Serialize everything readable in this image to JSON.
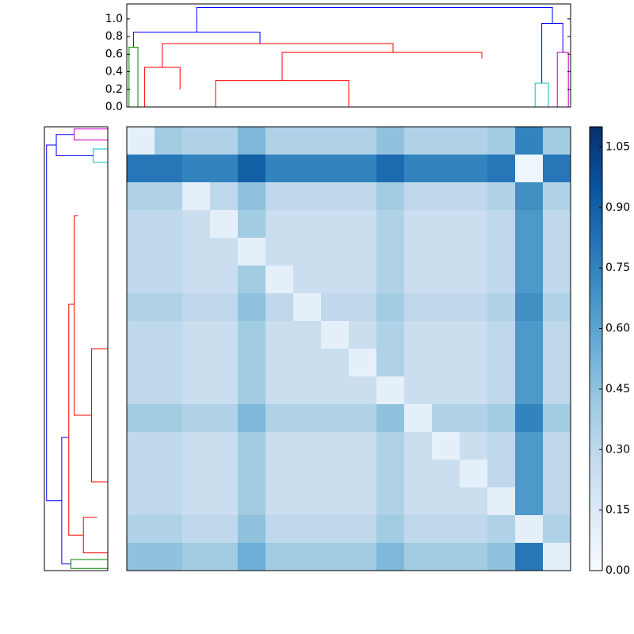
{
  "chart_data": {
    "type": "clustermap",
    "dendrogram": {
      "xlim": [
        0,
        100
      ],
      "ylim": [
        0,
        1.17
      ],
      "yticks": [
        {
          "value": 0,
          "label": "0.0"
        },
        {
          "value": 0.2,
          "label": "0.2"
        },
        {
          "value": 0.4,
          "label": "0.4"
        },
        {
          "value": 0.6,
          "label": "0.6"
        },
        {
          "value": 0.8,
          "label": "0.8"
        },
        {
          "value": 1.0,
          "label": "1.0"
        }
      ],
      "links": [
        {
          "x": [
            0.5,
            0.5,
            2.5,
            2.5
          ],
          "y": [
            0,
            0.68,
            0.68,
            0
          ],
          "color": "#008000"
        },
        {
          "x": [
            4,
            4,
            12,
            12
          ],
          "y": [
            0,
            0.45,
            0.45,
            0.2
          ],
          "color": "#ff0000"
        },
        {
          "x": [
            20,
            20,
            50,
            50
          ],
          "y": [
            0,
            0.3,
            0.3,
            0
          ],
          "color": "#ff0000"
        },
        {
          "x": [
            35,
            35,
            80,
            80
          ],
          "y": [
            0.3,
            0.62,
            0.62,
            0.55
          ],
          "color": "#ff0000"
        },
        {
          "x": [
            8,
            8,
            60,
            60
          ],
          "y": [
            0.45,
            0.72,
            0.72,
            0.62
          ],
          "color": "#ff0000"
        },
        {
          "x": [
            1.5,
            1.5,
            30,
            30
          ],
          "y": [
            0.68,
            0.85,
            0.85,
            0.72
          ],
          "color": "#0000ff"
        },
        {
          "x": [
            92,
            92,
            95,
            95
          ],
          "y": [
            0,
            0.27,
            0.27,
            0
          ],
          "color": "#00bfbf"
        },
        {
          "x": [
            97,
            97,
            99.5,
            99.5
          ],
          "y": [
            0,
            0.62,
            0.62,
            0
          ],
          "color": "#bf00bf"
        },
        {
          "x": [
            93.5,
            93.5,
            98.25,
            98.25
          ],
          "y": [
            0.27,
            0.95,
            0.95,
            0.62
          ],
          "color": "#0000ff"
        },
        {
          "x": [
            15.75,
            15.75,
            95.9,
            95.9
          ],
          "y": [
            0.85,
            1.13,
            1.13,
            0.95
          ],
          "color": "#0000ff"
        }
      ]
    },
    "heatmap": {
      "clim": [
        0,
        1.1
      ],
      "colormap": [
        "#f7fbff",
        "#deebf7",
        "#c6dbef",
        "#9ecae1",
        "#6baed6",
        "#4292c6",
        "#2171b5",
        "#08519c",
        "#08306b"
      ],
      "colorbar_ticks": [
        {
          "value": 0,
          "label": "0.00"
        },
        {
          "value": 0.15,
          "label": "0.15"
        },
        {
          "value": 0.3,
          "label": "0.30"
        },
        {
          "value": 0.45,
          "label": "0.45"
        },
        {
          "value": 0.6,
          "label": "0.60"
        },
        {
          "value": 0.75,
          "label": "0.75"
        },
        {
          "value": 0.9,
          "label": "0.90"
        },
        {
          "value": 1.05,
          "label": "1.05"
        }
      ],
      "values": [
        [
          0.1,
          0.4,
          0.35,
          0.35,
          0.5,
          0.35,
          0.35,
          0.35,
          0.35,
          0.45,
          0.35,
          0.35,
          0.35,
          0.4,
          0.75,
          0.4
        ],
        [
          0.8,
          0.8,
          0.75,
          0.75,
          0.9,
          0.75,
          0.75,
          0.75,
          0.75,
          0.85,
          0.75,
          0.75,
          0.75,
          0.8,
          0.05,
          0.8
        ],
        [
          0.35,
          0.35,
          0.1,
          0.3,
          0.45,
          0.3,
          0.3,
          0.3,
          0.3,
          0.4,
          0.3,
          0.3,
          0.3,
          0.35,
          0.7,
          0.35
        ],
        [
          0.3,
          0.3,
          0.25,
          0.1,
          0.4,
          0.25,
          0.25,
          0.25,
          0.25,
          0.35,
          0.25,
          0.25,
          0.25,
          0.3,
          0.65,
          0.3
        ],
        [
          0.3,
          0.3,
          0.25,
          0.25,
          0.1,
          0.25,
          0.25,
          0.25,
          0.25,
          0.35,
          0.25,
          0.25,
          0.25,
          0.3,
          0.65,
          0.3
        ],
        [
          0.3,
          0.3,
          0.25,
          0.25,
          0.4,
          0.1,
          0.25,
          0.25,
          0.25,
          0.35,
          0.25,
          0.25,
          0.25,
          0.3,
          0.65,
          0.3
        ],
        [
          0.35,
          0.35,
          0.3,
          0.3,
          0.45,
          0.3,
          0.1,
          0.3,
          0.3,
          0.4,
          0.3,
          0.3,
          0.3,
          0.35,
          0.7,
          0.35
        ],
        [
          0.3,
          0.3,
          0.25,
          0.25,
          0.4,
          0.25,
          0.25,
          0.1,
          0.25,
          0.35,
          0.25,
          0.25,
          0.25,
          0.3,
          0.65,
          0.3
        ],
        [
          0.3,
          0.3,
          0.25,
          0.25,
          0.4,
          0.25,
          0.25,
          0.25,
          0.1,
          0.35,
          0.25,
          0.25,
          0.25,
          0.3,
          0.65,
          0.3
        ],
        [
          0.3,
          0.3,
          0.25,
          0.25,
          0.4,
          0.25,
          0.25,
          0.25,
          0.25,
          0.1,
          0.25,
          0.25,
          0.25,
          0.3,
          0.65,
          0.3
        ],
        [
          0.4,
          0.4,
          0.35,
          0.35,
          0.5,
          0.35,
          0.35,
          0.35,
          0.35,
          0.45,
          0.1,
          0.35,
          0.35,
          0.4,
          0.75,
          0.4
        ],
        [
          0.3,
          0.3,
          0.25,
          0.25,
          0.4,
          0.25,
          0.25,
          0.25,
          0.25,
          0.35,
          0.25,
          0.1,
          0.25,
          0.3,
          0.65,
          0.3
        ],
        [
          0.3,
          0.3,
          0.25,
          0.25,
          0.4,
          0.25,
          0.25,
          0.25,
          0.25,
          0.35,
          0.25,
          0.25,
          0.1,
          0.3,
          0.65,
          0.3
        ],
        [
          0.3,
          0.3,
          0.25,
          0.25,
          0.4,
          0.25,
          0.25,
          0.25,
          0.25,
          0.35,
          0.25,
          0.25,
          0.25,
          0.1,
          0.65,
          0.3
        ],
        [
          0.35,
          0.35,
          0.3,
          0.3,
          0.45,
          0.3,
          0.3,
          0.3,
          0.3,
          0.4,
          0.3,
          0.3,
          0.3,
          0.35,
          0.1,
          0.35
        ],
        [
          0.45,
          0.45,
          0.4,
          0.4,
          0.55,
          0.4,
          0.4,
          0.4,
          0.4,
          0.5,
          0.4,
          0.4,
          0.4,
          0.45,
          0.8,
          0.1
        ]
      ]
    }
  }
}
